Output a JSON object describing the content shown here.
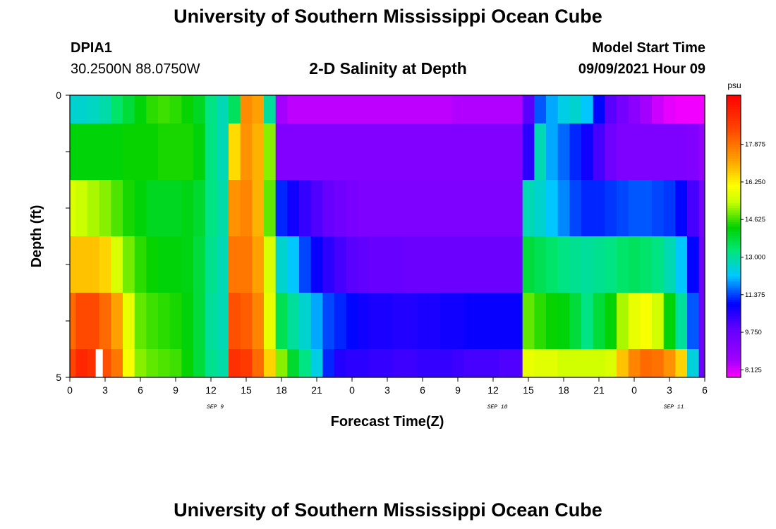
{
  "header": {
    "title_top": "University of Southern Mississippi Ocean Cube",
    "title_bottom": "University of Southern Mississippi Ocean Cube",
    "station_id": "DPIA1",
    "station_coords": "30.2500N  88.0750W",
    "chart_title": "2-D Salinity at Depth",
    "model_start_label": "Model Start Time",
    "model_start_value": "09/09/2021 Hour 09"
  },
  "chart_data": {
    "type": "heatmap",
    "title": "2-D Salinity at Depth",
    "xlabel": "Forecast Time(Z)",
    "ylabel": "Depth (ft)",
    "xlim": [
      0,
      54
    ],
    "ylim": [
      0,
      5
    ],
    "x_tick_labels": [
      "0",
      "3",
      "6",
      "9",
      "12",
      "15",
      "18",
      "21",
      "0",
      "3",
      "6",
      "9",
      "12",
      "15",
      "18",
      "21",
      "0",
      "3",
      "6"
    ],
    "y_tick_labels": [
      "0",
      "5"
    ],
    "date_labels": [
      {
        "label": "SEP 9",
        "at_hour": 12
      },
      {
        "label": "SEP 10",
        "at_hour": 36
      },
      {
        "label": "SEP 11",
        "at_hour": 51
      }
    ],
    "colorbar": {
      "unit": "psu",
      "min": 7.8,
      "max": 20.0,
      "tick_labels": [
        "17.875",
        "16.250",
        "14.625",
        "13.000",
        "11.375",
        "9.750",
        "8.125"
      ],
      "tick_values": [
        17.875,
        16.25,
        14.625,
        13.0,
        11.375,
        9.75,
        8.125
      ]
    },
    "hours": [
      0,
      1,
      2,
      3,
      4,
      5,
      6,
      7,
      8,
      9,
      10,
      11,
      12,
      13,
      14,
      15,
      16,
      17,
      18,
      19,
      20,
      21,
      22,
      23,
      24,
      25,
      26,
      27,
      28,
      29,
      30,
      31,
      32,
      33,
      34,
      35,
      36,
      37,
      38,
      39,
      40,
      41,
      42,
      43,
      44,
      45,
      46,
      47,
      48,
      49,
      50,
      51,
      52,
      53,
      54
    ],
    "layer_depths": [
      0.25,
      1.0,
      2.0,
      3.0,
      4.0,
      4.75
    ],
    "layer_bounds": [
      0,
      0.5,
      1.5,
      2.5,
      3.5,
      4.5,
      5
    ],
    "salinity": [
      [
        12.6,
        12.6,
        12.7,
        12.9,
        13.4,
        13.8,
        14.2,
        14.5,
        14.6,
        14.5,
        14.3,
        14.0,
        13.2,
        12.8,
        13.5,
        17.5,
        17.2,
        13.0,
        8.5,
        8.3,
        8.3,
        8.3,
        8.3,
        8.3,
        8.3,
        8.3,
        8.3,
        8.3,
        8.3,
        8.3,
        8.3,
        8.3,
        8.3,
        8.4,
        8.4,
        8.4,
        8.4,
        8.4,
        8.4,
        10.0,
        11.5,
        12.0,
        12.4,
        12.6,
        12.2,
        11.0,
        10.0,
        9.5,
        9.0,
        8.5,
        8.2,
        8.0,
        7.9,
        7.9,
        7.9
      ],
      [
        14.2,
        14.2,
        14.2,
        14.2,
        14.2,
        14.3,
        14.3,
        14.3,
        14.4,
        14.4,
        14.4,
        14.2,
        13.2,
        12.8,
        16.5,
        17.4,
        17.0,
        15.0,
        9.2,
        9.2,
        9.2,
        9.2,
        9.2,
        9.2,
        9.2,
        9.2,
        9.2,
        9.2,
        9.2,
        9.2,
        9.2,
        9.2,
        9.2,
        9.2,
        9.2,
        9.2,
        9.2,
        9.2,
        9.2,
        10.5,
        12.8,
        12.0,
        11.6,
        11.2,
        10.8,
        10.2,
        9.6,
        9.3,
        9.3,
        9.3,
        9.3,
        9.3,
        9.3,
        9.2,
        8.8
      ],
      [
        15.6,
        15.4,
        15.2,
        15.0,
        14.7,
        14.4,
        14.2,
        14.0,
        14.0,
        14.0,
        14.1,
        13.9,
        13.2,
        12.9,
        17.4,
        17.6,
        17.0,
        14.8,
        11.2,
        10.8,
        10.4,
        10.1,
        9.8,
        9.6,
        9.4,
        9.3,
        9.3,
        9.3,
        9.3,
        9.3,
        9.3,
        9.3,
        9.3,
        9.3,
        9.3,
        9.3,
        9.3,
        9.3,
        9.3,
        12.8,
        12.6,
        12.2,
        11.8,
        11.4,
        11.2,
        11.2,
        11.3,
        11.4,
        11.5,
        11.5,
        11.4,
        11.3,
        11.0,
        10.2,
        9.5
      ],
      [
        16.8,
        16.8,
        16.8,
        16.6,
        15.6,
        14.9,
        14.5,
        14.3,
        14.2,
        14.2,
        14.1,
        13.8,
        13.1,
        12.8,
        17.8,
        17.8,
        17.2,
        15.6,
        12.6,
        12.2,
        11.4,
        10.9,
        10.5,
        10.2,
        10.0,
        9.9,
        9.8,
        9.8,
        9.8,
        9.7,
        9.7,
        9.7,
        9.7,
        9.7,
        9.7,
        9.7,
        9.7,
        9.7,
        9.7,
        13.8,
        13.6,
        13.4,
        13.2,
        13.1,
        13.0,
        13.1,
        13.2,
        13.4,
        13.5,
        13.4,
        13.2,
        12.8,
        12.2,
        11.0,
        9.6
      ],
      [
        18.0,
        18.5,
        18.5,
        18.0,
        17.2,
        15.8,
        14.8,
        14.6,
        14.5,
        14.4,
        14.2,
        13.8,
        13.0,
        12.8,
        18.4,
        18.2,
        17.6,
        15.8,
        13.6,
        13.0,
        12.6,
        12.0,
        11.4,
        11.2,
        11.0,
        10.8,
        10.7,
        10.7,
        10.6,
        10.6,
        10.7,
        10.7,
        10.8,
        10.8,
        10.9,
        10.9,
        10.9,
        10.9,
        10.9,
        14.8,
        14.5,
        14.3,
        14.2,
        13.8,
        13.2,
        13.8,
        14.2,
        15.2,
        15.8,
        16.0,
        15.5,
        14.2,
        13.0,
        11.5,
        9.6
      ],
      [
        18.6,
        19.2,
        19.0,
        18.4,
        17.8,
        16.0,
        15.0,
        14.8,
        14.7,
        14.6,
        14.3,
        13.8,
        13.1,
        12.9,
        19.0,
        18.8,
        18.0,
        16.6,
        15.0,
        13.9,
        13.2,
        12.4,
        11.2,
        10.6,
        10.5,
        10.5,
        10.4,
        10.4,
        10.3,
        10.3,
        10.4,
        10.4,
        10.4,
        10.3,
        10.2,
        10.2,
        10.2,
        10.1,
        10.1,
        15.8,
        15.7,
        15.7,
        15.5,
        15.5,
        15.5,
        15.5,
        15.6,
        16.8,
        17.6,
        18.0,
        17.9,
        17.4,
        16.6,
        12.5,
        9.6
      ]
    ],
    "missing": [
      {
        "hour": 2.5,
        "depth": 4.75
      }
    ]
  },
  "colors": {
    "missing": "#ffffff",
    "frame": "#000000"
  }
}
